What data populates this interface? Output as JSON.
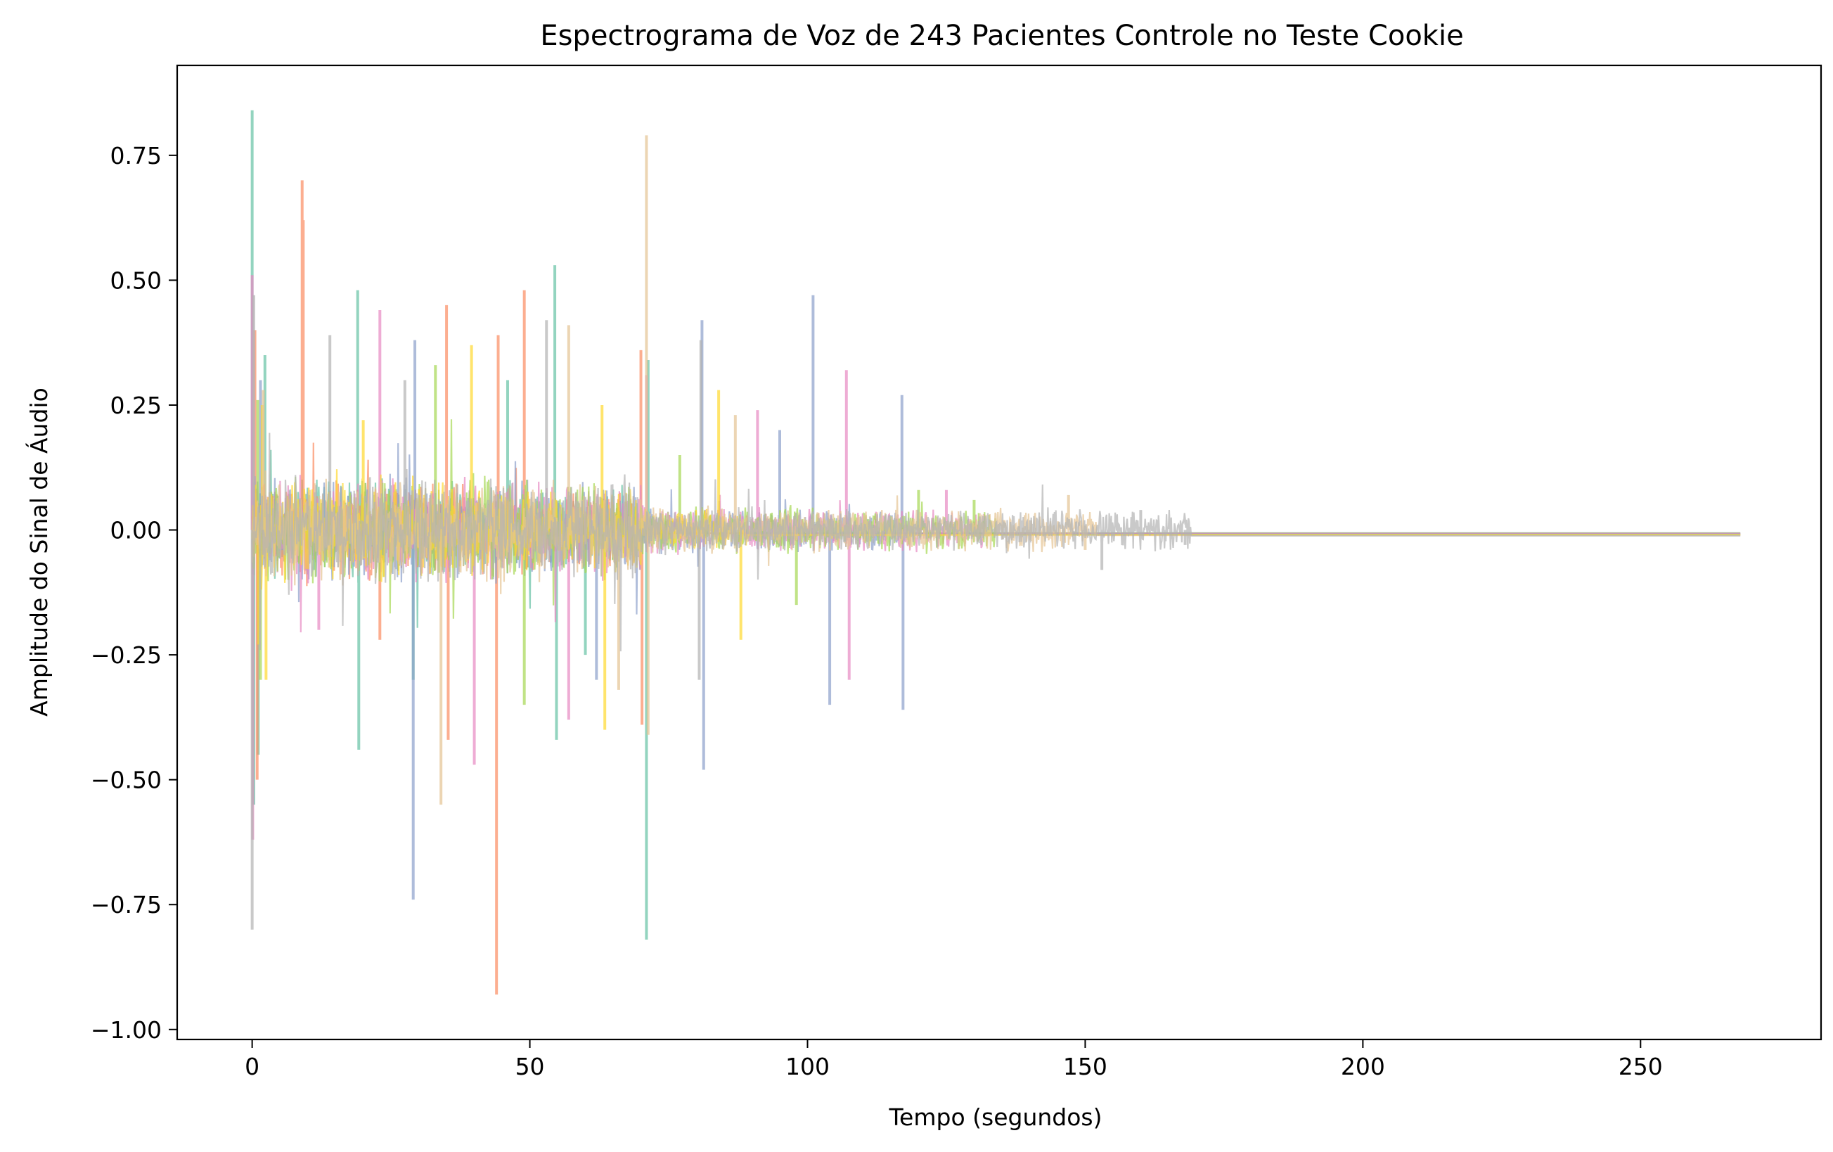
{
  "chart_data": {
    "type": "line",
    "title": "Espectrograma de Voz de 243 Pacientes Controle no Teste Cookie",
    "xlabel": "Tempo (segundos)",
    "ylabel": "Amplitude do Sinal de Áudio",
    "xlim": [
      -13.5,
      282.5
    ],
    "ylim": [
      -1.02,
      0.93
    ],
    "xticks": [
      0,
      50,
      100,
      150,
      200,
      250
    ],
    "xtick_labels": [
      "0",
      "50",
      "100",
      "150",
      "200",
      "250"
    ],
    "yticks": [
      0.75,
      0.5,
      0.25,
      0.0,
      -0.25,
      -0.5,
      -0.75,
      -1.0
    ],
    "ytick_labels": [
      "0.75",
      "0.50",
      "0.25",
      "0.00",
      "−0.25",
      "−0.50",
      "−0.75",
      "−1.00"
    ],
    "grid": false,
    "legend": "none",
    "palette": [
      "#66c2a5",
      "#fc8d62",
      "#8da0cb",
      "#e78ac3",
      "#a6d854",
      "#ffd92f",
      "#e5c494",
      "#b3b3b3"
    ],
    "line_alpha": 0.7,
    "series_count": 243,
    "series": [
      {
        "color": "#66c2a5",
        "end_time": 72,
        "spikes": [
          [
            0.0,
            0.84
          ],
          [
            0.3,
            -0.55
          ],
          [
            1.1,
            -0.45
          ],
          [
            2.3,
            0.35
          ],
          [
            19.0,
            0.48
          ],
          [
            19.2,
            -0.44
          ],
          [
            29.0,
            -0.3
          ],
          [
            46.0,
            0.3
          ],
          [
            54.5,
            0.53
          ],
          [
            54.8,
            -0.42
          ],
          [
            71.0,
            -0.82
          ],
          [
            71.3,
            0.34
          ],
          [
            60.0,
            -0.25
          ]
        ]
      },
      {
        "color": "#fc8d62",
        "end_time": 70,
        "spikes": [
          [
            0.5,
            0.4
          ],
          [
            0.9,
            -0.5
          ],
          [
            9.0,
            0.7
          ],
          [
            9.2,
            0.62
          ],
          [
            35.0,
            0.45
          ],
          [
            35.3,
            -0.42
          ],
          [
            44.0,
            -0.93
          ],
          [
            44.3,
            0.39
          ],
          [
            49.0,
            0.48
          ],
          [
            70.0,
            0.36
          ],
          [
            70.2,
            -0.39
          ],
          [
            23.0,
            -0.22
          ]
        ]
      },
      {
        "color": "#8da0cb",
        "end_time": 117,
        "spikes": [
          [
            1.5,
            0.3
          ],
          [
            29.0,
            -0.74
          ],
          [
            29.3,
            0.38
          ],
          [
            81.0,
            0.42
          ],
          [
            81.3,
            -0.48
          ],
          [
            101.0,
            0.47
          ],
          [
            104.0,
            -0.35
          ],
          [
            117.0,
            0.27
          ],
          [
            117.2,
            -0.36
          ],
          [
            95.0,
            0.2
          ],
          [
            62.0,
            -0.3
          ]
        ]
      },
      {
        "color": "#e78ac3",
        "end_time": 132,
        "spikes": [
          [
            0.0,
            0.51
          ],
          [
            0.1,
            -0.62
          ],
          [
            23.0,
            0.44
          ],
          [
            40.0,
            -0.47
          ],
          [
            57.0,
            -0.38
          ],
          [
            71.0,
            0.31
          ],
          [
            107.0,
            0.32
          ],
          [
            107.5,
            -0.3
          ],
          [
            91.0,
            0.24
          ],
          [
            125.0,
            0.08
          ],
          [
            12.0,
            -0.2
          ]
        ]
      },
      {
        "color": "#a6d854",
        "end_time": 134,
        "spikes": [
          [
            1.0,
            0.26
          ],
          [
            1.5,
            -0.3
          ],
          [
            33.0,
            0.33
          ],
          [
            49.0,
            -0.35
          ],
          [
            77.0,
            0.15
          ],
          [
            98.0,
            -0.15
          ],
          [
            120.0,
            0.08
          ],
          [
            130.0,
            0.06
          ]
        ]
      },
      {
        "color": "#ffd92f",
        "end_time": 89,
        "spikes": [
          [
            1.8,
            0.25
          ],
          [
            2.5,
            -0.3
          ],
          [
            20.0,
            0.22
          ],
          [
            39.5,
            0.37
          ],
          [
            63.0,
            0.25
          ],
          [
            63.5,
            -0.4
          ],
          [
            84.0,
            0.28
          ],
          [
            88.0,
            -0.22
          ]
        ]
      },
      {
        "color": "#e5c494",
        "end_time": 152,
        "spikes": [
          [
            2.0,
            0.28
          ],
          [
            34.0,
            -0.55
          ],
          [
            57.0,
            0.41
          ],
          [
            66.0,
            -0.32
          ],
          [
            71.0,
            0.79
          ],
          [
            71.3,
            -0.41
          ],
          [
            87.0,
            0.23
          ],
          [
            147.0,
            0.07
          ],
          [
            150.0,
            -0.04
          ]
        ]
      },
      {
        "color": "#b3b3b3",
        "end_time": 169,
        "spikes": [
          [
            0.0,
            -0.8
          ],
          [
            0.3,
            0.47
          ],
          [
            14.0,
            0.39
          ],
          [
            27.5,
            0.3
          ],
          [
            53.0,
            0.42
          ],
          [
            80.5,
            -0.3
          ],
          [
            80.8,
            0.38
          ],
          [
            153.0,
            -0.08
          ],
          [
            160.0,
            0.04
          ],
          [
            168.0,
            -0.03
          ]
        ]
      }
    ]
  }
}
